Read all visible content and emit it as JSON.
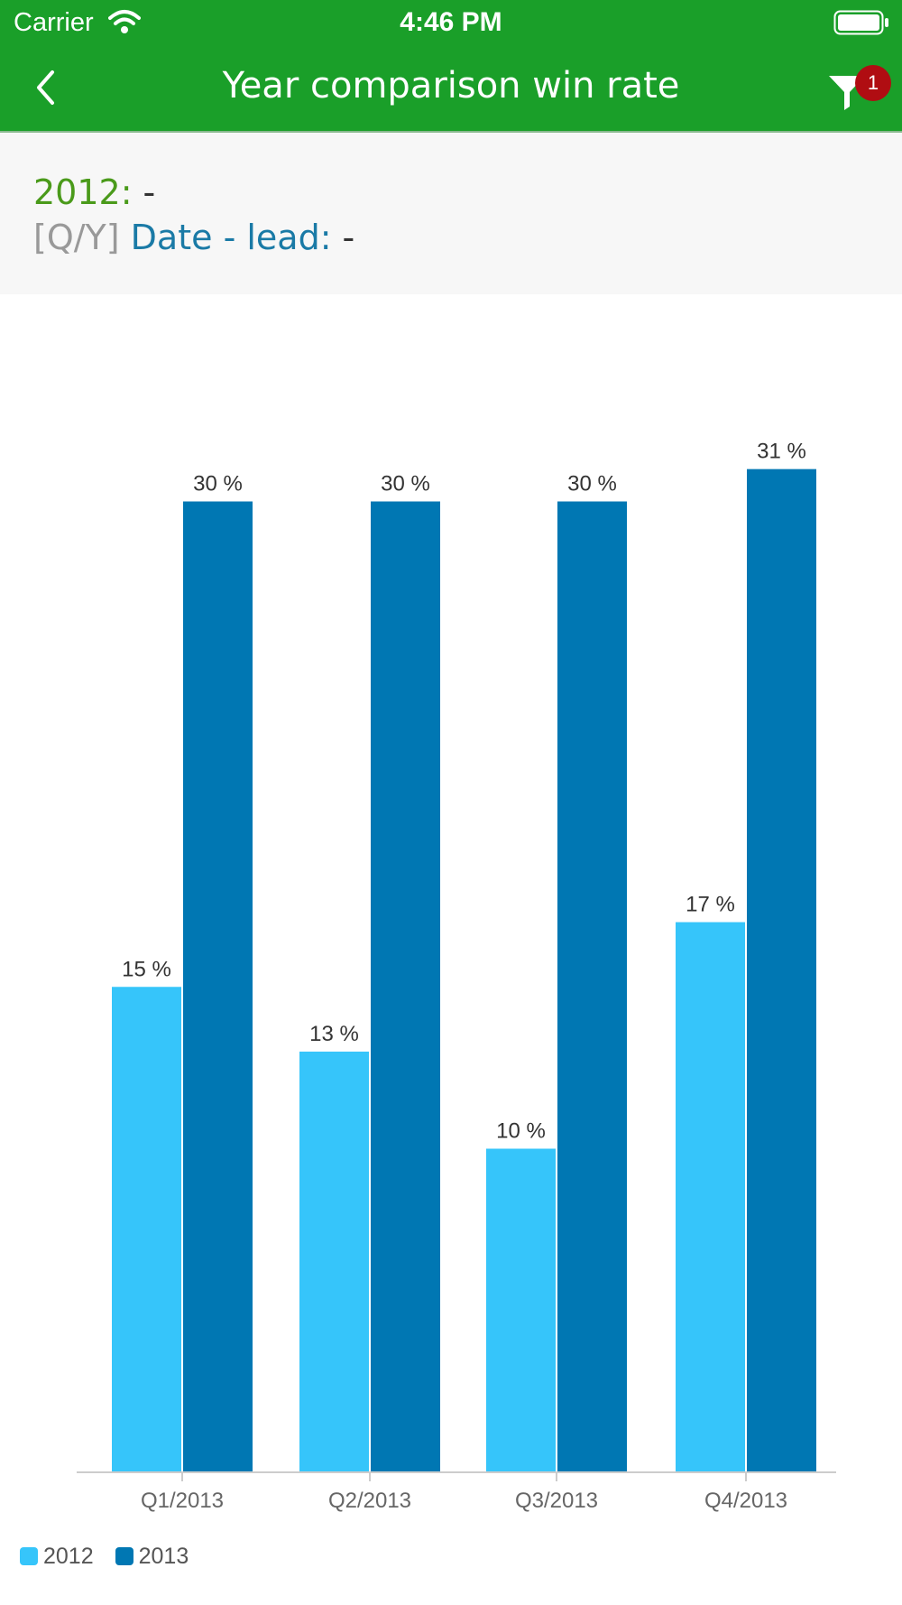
{
  "status_bar": {
    "carrier": "Carrier",
    "time": "4:46 PM"
  },
  "nav": {
    "title": "Year comparison win rate",
    "filter_badge_count": "1"
  },
  "filters": {
    "year_label": "2012:",
    "year_value": "-",
    "field_prefix": "[Q/Y]",
    "field_label": "Date - lead:",
    "field_value": "-"
  },
  "colors": {
    "brand_green": "#1a9f29",
    "series_2012": "#36c5fa",
    "series_2013": "#0077b3",
    "badge_red": "#b00d12"
  },
  "chart_data": {
    "type": "bar",
    "categories": [
      "Q1/2013",
      "Q2/2013",
      "Q3/2013",
      "Q4/2013"
    ],
    "series": [
      {
        "name": "2012",
        "values": [
          15,
          13,
          10,
          17
        ],
        "labels": [
          "15 %",
          "13 %",
          "10 %",
          "17 %"
        ]
      },
      {
        "name": "2013",
        "values": [
          30,
          30,
          30,
          31
        ],
        "labels": [
          "30 %",
          "30 %",
          "30 %",
          "31 %"
        ]
      }
    ],
    "ylim": [
      0,
      30
    ],
    "grid": false,
    "legend_position": "bottom-left"
  }
}
